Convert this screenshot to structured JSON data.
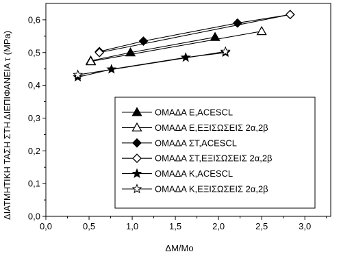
{
  "chart_data": {
    "type": "line",
    "title": "",
    "xlabel": "ΔM/Mo",
    "ylabel": "ΔΙΑΤΜΗΤΙΚΗ ΤΑΣΗ ΣΤΗ ΔΙΕΠΙΦΑΝΕΙΑ τ (MPa)",
    "xlim": [
      0.0,
      3.3
    ],
    "ylim": [
      0.0,
      0.65
    ],
    "xticks": [
      "0,0",
      "0,5",
      "1,0",
      "1,5",
      "2,0",
      "2,5",
      "3,0"
    ],
    "yticks": [
      "0,0",
      "0,1",
      "0,2",
      "0,3",
      "0,4",
      "0,5",
      "0,6"
    ],
    "grid": false,
    "legend_position": "lower-right",
    "series": [
      {
        "name": "ΟΜΑΔΑ Ε,ACESCL",
        "marker": "triangle-filled",
        "x": [
          0.52,
          0.98,
          1.96
        ],
        "y": [
          0.475,
          0.5,
          0.547
        ]
      },
      {
        "name": "ΟΜΑΔΑ Ε,ΕΞΙΣΩΣΕΙΣ 2α,2β",
        "marker": "triangle-open",
        "x": [
          0.52,
          2.5
        ],
        "y": [
          0.473,
          0.565
        ]
      },
      {
        "name": "ΟΜΑΔΑ ΣΤ,ACESCL",
        "marker": "diamond-filled",
        "x": [
          0.62,
          1.13,
          2.22,
          2.83
        ],
        "y": [
          0.503,
          0.535,
          0.59,
          0.616
        ]
      },
      {
        "name": "ΟΜΑΔΑ ΣΤ,ΕΞΙΣΩΣΕΙΣ 2α,2β",
        "marker": "diamond-open",
        "x": [
          0.62,
          2.83
        ],
        "y": [
          0.5,
          0.616
        ]
      },
      {
        "name": "ΟΜΑΔΑ Κ,ACESCL",
        "marker": "star-filled",
        "x": [
          0.37,
          0.76,
          1.62,
          2.08
        ],
        "y": [
          0.425,
          0.449,
          0.485,
          0.5
        ]
      },
      {
        "name": "ΟΜΑΔΑ Κ,ΕΞΙΣΩΣΕΙΣ 2α,2β",
        "marker": "star-open",
        "x": [
          0.37,
          2.08
        ],
        "y": [
          0.432,
          0.503
        ]
      }
    ]
  }
}
